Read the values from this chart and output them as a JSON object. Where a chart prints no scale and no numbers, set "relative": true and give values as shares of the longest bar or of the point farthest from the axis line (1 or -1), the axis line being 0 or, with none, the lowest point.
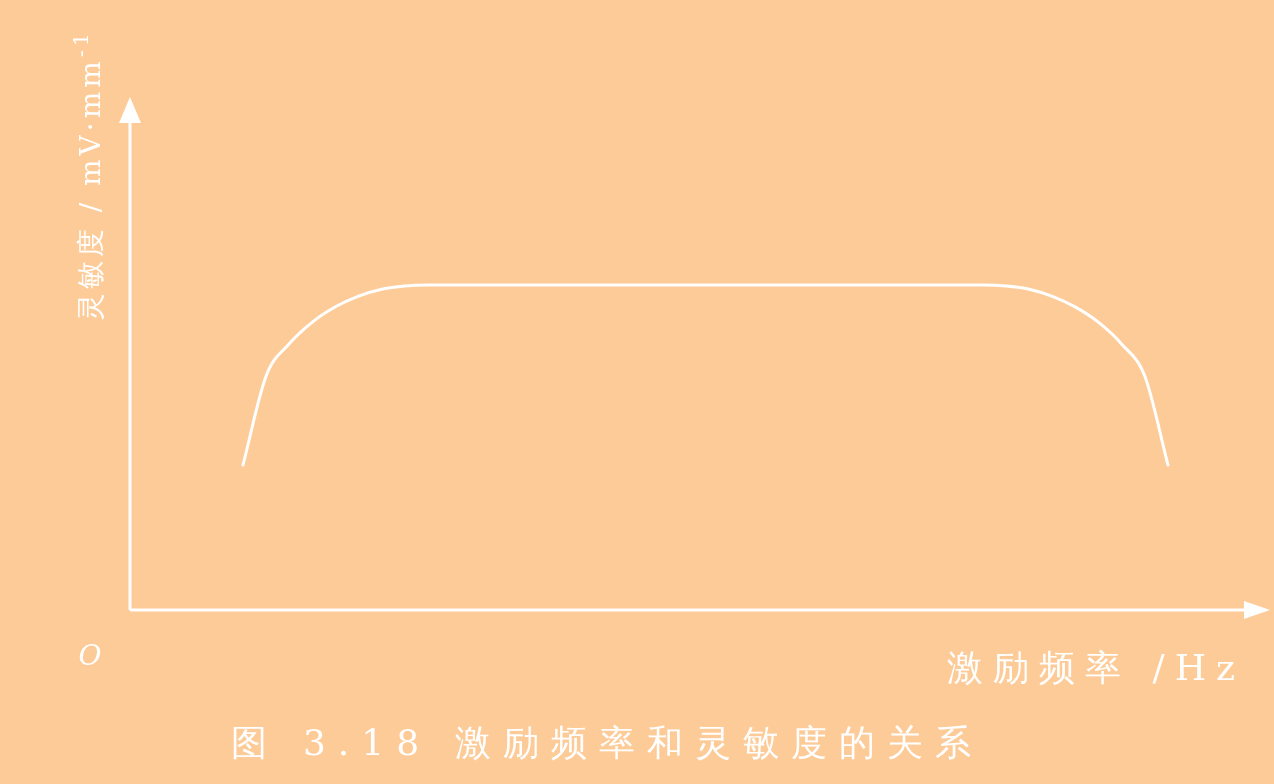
{
  "chart_data": {
    "type": "line",
    "relative": true,
    "xlabel": "激励频率 /Hz",
    "ylabel": "灵敏度 / mV·mm$^{-1}$",
    "annotations": [
      "O",
      "图 3.18 激励频率和灵敏度的关系"
    ],
    "categories": [
      null,
      null,
      null,
      null,
      null,
      null,
      null,
      null,
      null,
      null,
      null,
      null,
      null,
      null,
      null,
      null,
      null,
      null,
      null,
      null,
      null,
      null,
      null,
      null,
      null,
      null,
      null,
      null,
      null,
      null,
      null,
      null,
      null,
      null,
      null,
      null,
      null,
      null,
      null,
      null,
      null
    ],
    "series": [
      {
        "color": "#ffffff",
        "values": [
          0.446,
          0.72,
          0.819,
          0.886,
          0.933,
          0.966,
          0.987,
          0.997,
          1,
          1,
          1,
          1,
          1,
          1,
          1,
          1,
          1,
          1,
          1,
          1,
          1,
          1,
          1,
          1,
          1,
          1,
          1,
          1,
          1,
          1,
          1,
          1,
          1,
          0.997,
          0.987,
          0.965,
          0.932,
          0.885,
          0.818,
          0.719,
          0.446
        ]
      }
    ]
  }
}
